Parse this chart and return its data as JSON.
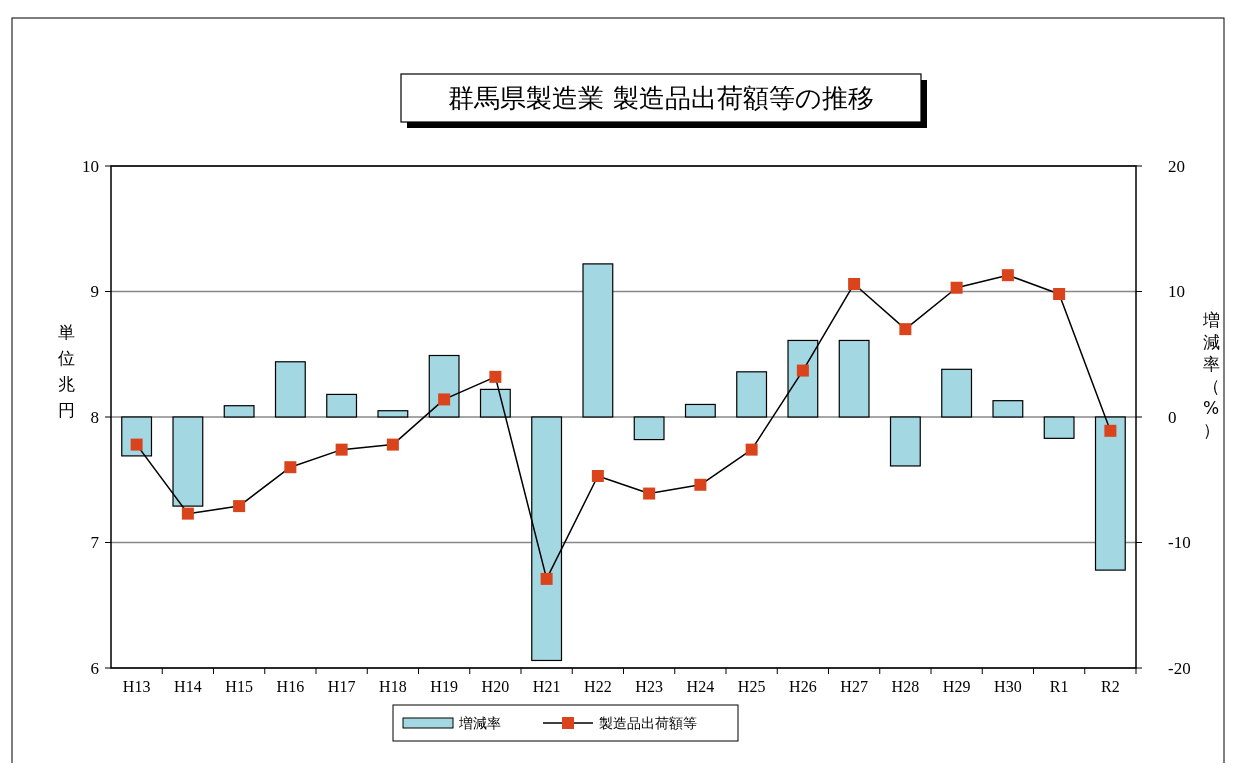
{
  "chart_data": {
    "type": "bar",
    "title": "群馬県製造業 製造品出荷額等の推移",
    "ylabel": "単位兆円",
    "y2label": "増減率（%）",
    "categories": [
      "H13",
      "H14",
      "H15",
      "H16",
      "H17",
      "H18",
      "H19",
      "H20",
      "H21",
      "H22",
      "H23",
      "H24",
      "H25",
      "H26",
      "H27",
      "H28",
      "H29",
      "H30",
      "R1",
      "R2"
    ],
    "series": [
      {
        "name": "増減率",
        "type": "bar",
        "axis": "y2",
        "color": "#a3d8e3",
        "values": [
          -3.1,
          -7.1,
          0.9,
          4.4,
          1.8,
          0.5,
          4.9,
          2.2,
          -19.4,
          12.2,
          -1.8,
          1.0,
          3.6,
          6.1,
          6.1,
          -3.9,
          3.8,
          1.3,
          -1.7,
          -12.2
        ]
      },
      {
        "name": "製造品出荷額等",
        "type": "line",
        "axis": "y",
        "color": "#d9441c",
        "values": [
          7.78,
          7.23,
          7.29,
          7.6,
          7.74,
          7.78,
          8.14,
          8.32,
          6.71,
          7.53,
          7.39,
          7.46,
          7.74,
          8.37,
          9.06,
          8.7,
          9.03,
          9.13,
          8.98,
          7.89
        ]
      }
    ],
    "ylim": [
      6,
      10
    ],
    "yticks": [
      6,
      7,
      8,
      9,
      10
    ],
    "y2lim": [
      -20,
      20
    ],
    "y2ticks": [
      -20,
      -10,
      0,
      10,
      20
    ],
    "grid": "y",
    "legend": "bottom",
    "marker": "square",
    "line_style": "solid"
  }
}
